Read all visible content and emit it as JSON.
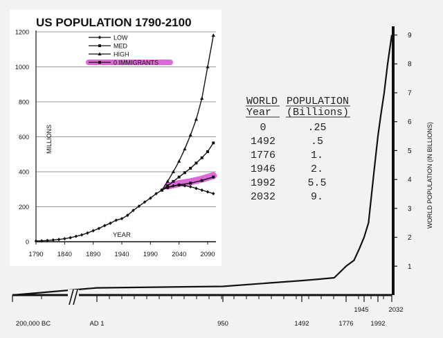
{
  "chart_data": [
    {
      "type": "line",
      "title": "US POPULATION 1790-2100",
      "xlabel": "YEAR",
      "ylabel": "MILLIONS",
      "x_ticks": [
        1790,
        1840,
        1890,
        1940,
        1990,
        2040,
        2090
      ],
      "y_ticks": [
        0,
        200,
        400,
        600,
        800,
        1000,
        1200
      ],
      "xlim": [
        1790,
        2100
      ],
      "ylim": [
        0,
        1200
      ],
      "grid": "horizontal",
      "legend_position": "top-left",
      "historical": {
        "x": [
          1790,
          1800,
          1810,
          1820,
          1830,
          1840,
          1850,
          1860,
          1870,
          1880,
          1890,
          1900,
          1910,
          1920,
          1930,
          1940,
          1950,
          1960,
          1970,
          1980,
          1990,
          2000,
          2010
        ],
        "y": [
          4,
          5,
          7,
          10,
          13,
          17,
          23,
          31,
          39,
          50,
          63,
          76,
          92,
          106,
          123,
          132,
          151,
          179,
          203,
          227,
          249,
          275,
          295
        ]
      },
      "series": [
        {
          "name": "LOW",
          "marker": "diamond",
          "x": [
            2010,
            2020,
            2030,
            2040,
            2050,
            2060,
            2070,
            2080,
            2090,
            2100
          ],
          "y": [
            295,
            310,
            320,
            325,
            320,
            315,
            305,
            295,
            285,
            275
          ]
        },
        {
          "name": "MED",
          "marker": "square",
          "x": [
            2010,
            2020,
            2030,
            2040,
            2050,
            2060,
            2070,
            2080,
            2090,
            2100
          ],
          "y": [
            295,
            320,
            345,
            370,
            395,
            420,
            450,
            480,
            515,
            565
          ]
        },
        {
          "name": "HIGH",
          "marker": "triangle",
          "x": [
            2010,
            2020,
            2030,
            2040,
            2050,
            2060,
            2070,
            2080,
            2090,
            2100
          ],
          "y": [
            295,
            345,
            400,
            460,
            530,
            610,
            700,
            820,
            1000,
            1180
          ]
        },
        {
          "name": "0 IMMIGRANTS",
          "marker": "square",
          "x": [
            2020,
            2040,
            2060,
            2080,
            2100
          ],
          "y": [
            310,
            325,
            335,
            350,
            370
          ]
        }
      ],
      "highlight_color": "#d64fd0"
    },
    {
      "type": "table",
      "title": "WORLD POPULATION",
      "columns": [
        "Year",
        "(Billions)"
      ],
      "rows": [
        [
          "0",
          ".25"
        ],
        [
          "1492",
          ".5"
        ],
        [
          "1776",
          "1."
        ],
        [
          "1946",
          "2."
        ],
        [
          "1992",
          "5.5"
        ],
        [
          "2032",
          "9."
        ]
      ]
    },
    {
      "type": "line",
      "ylabel": "WORLD POPULATION (IN BILLIONS)",
      "y_ticks": [
        1,
        2,
        3,
        4,
        5,
        6,
        7,
        8,
        9
      ],
      "ylim": [
        0,
        9.3
      ],
      "x_tick_labels": [
        "200,000 BC",
        "AD 1",
        "950",
        "1492",
        "1776",
        "1945",
        "1992",
        "2032"
      ],
      "x_scale": "broken (//) before AD 1",
      "x": [
        -200000,
        1,
        950,
        1492,
        1600,
        1700,
        1776,
        1850,
        1900,
        1945,
        1960,
        1980,
        1992,
        2000,
        2010,
        2020,
        2032
      ],
      "y": [
        0.0,
        0.25,
        0.3,
        0.5,
        0.55,
        0.6,
        1.0,
        1.2,
        1.6,
        2.0,
        2.5,
        4.4,
        5.5,
        6.2,
        7.0,
        8.0,
        9.0
      ]
    }
  ]
}
